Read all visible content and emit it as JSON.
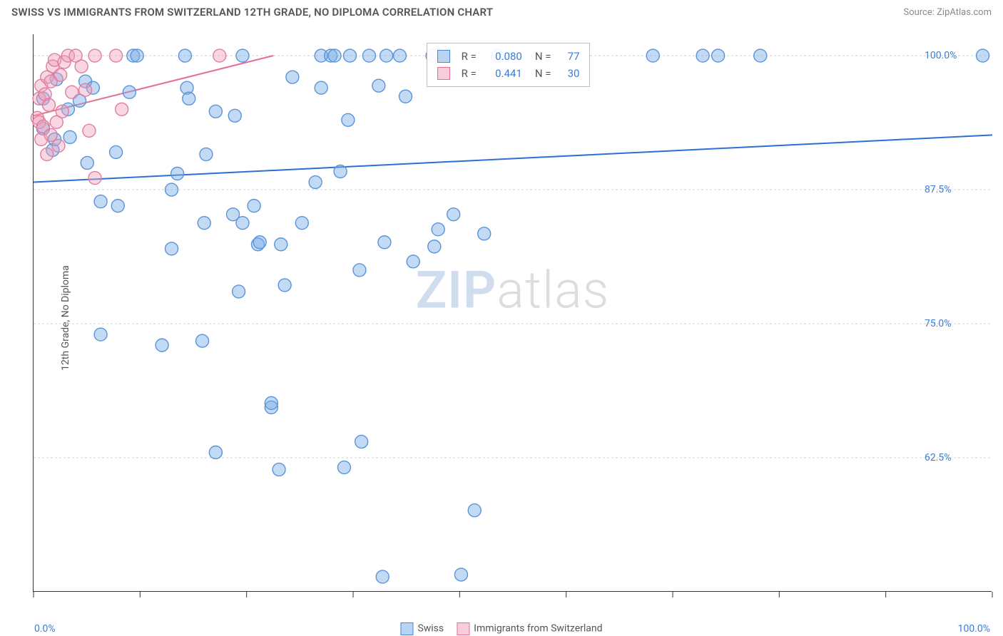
{
  "title": "SWISS VS IMMIGRANTS FROM SWITZERLAND 12TH GRADE, NO DIPLOMA CORRELATION CHART",
  "source_label": "Source: ZipAtlas.com",
  "y_axis_label": "12th Grade, No Diploma",
  "x_min_label": "0.0%",
  "x_max_label": "100.0%",
  "watermark_a": "ZIP",
  "watermark_b": "atlas",
  "chart": {
    "type": "scatter",
    "xlim": [
      0,
      100
    ],
    "ylim": [
      50,
      102
    ],
    "y_ticks": [
      62.5,
      75.0,
      87.5,
      100.0
    ],
    "y_tick_labels": [
      "62.5%",
      "75.0%",
      "87.5%",
      "100.0%"
    ],
    "x_tick_count": 9,
    "background_color": "#ffffff",
    "grid_color": "#d0d0d0",
    "axis_color": "#333333",
    "marker_radius": 9,
    "marker_stroke_width": 1.4,
    "line_width": 2,
    "y_tick_label_x_pct": 93,
    "stats_panel": {
      "left_pct": 41,
      "top_pct": 1.5,
      "rows": [
        {
          "swatch_fill": "#b9d4f3",
          "swatch_stroke": "#4b86d6",
          "r_label": "R =",
          "r_value": "0.080",
          "n_label": "N =",
          "n_value": "77"
        },
        {
          "swatch_fill": "#f6cdd8",
          "swatch_stroke": "#e36f94",
          "r_label": "R =",
          "r_value": "0.441",
          "n_label": "N =",
          "n_value": "30"
        }
      ]
    },
    "series": [
      {
        "name": "Swiss",
        "marker_fill": "rgba(122,172,230,0.45)",
        "marker_stroke": "#5a94d8",
        "line_color": "#2d6fd6",
        "legend_swatch_fill": "#b9d4f3",
        "legend_swatch_stroke": "#4b86d6",
        "regression": {
          "x1": 0,
          "y1": 88.2,
          "x2": 100,
          "y2": 92.6
        },
        "points": [
          [
            1,
            93.2
          ],
          [
            1,
            96
          ],
          [
            2,
            91.2
          ],
          [
            2.4,
            97.8
          ],
          [
            2.2,
            92.2
          ],
          [
            3.6,
            95
          ],
          [
            3.8,
            92.4
          ],
          [
            4.8,
            95.8
          ],
          [
            5.4,
            97.6
          ],
          [
            5.6,
            90
          ],
          [
            6.2,
            97
          ],
          [
            7,
            86.4
          ],
          [
            7,
            74
          ],
          [
            8.6,
            91
          ],
          [
            8.8,
            86
          ],
          [
            10,
            96.6
          ],
          [
            10.4,
            100
          ],
          [
            10.8,
            100
          ],
          [
            13.4,
            73
          ],
          [
            14.4,
            82
          ],
          [
            14.4,
            87.5
          ],
          [
            15,
            89
          ],
          [
            15.8,
            100
          ],
          [
            16,
            97
          ],
          [
            16.2,
            96
          ],
          [
            17.6,
            73.4
          ],
          [
            17.8,
            84.4
          ],
          [
            18,
            90.8
          ],
          [
            19,
            63
          ],
          [
            19,
            94.8
          ],
          [
            20.8,
            85.2
          ],
          [
            21,
            94.4
          ],
          [
            21.4,
            78
          ],
          [
            21.8,
            84.4
          ],
          [
            21.8,
            100
          ],
          [
            23,
            86
          ],
          [
            23.4,
            82.4
          ],
          [
            23.6,
            82.6
          ],
          [
            24.8,
            67.2
          ],
          [
            24.8,
            67.6
          ],
          [
            25.6,
            61.4
          ],
          [
            25.8,
            82.4
          ],
          [
            26.2,
            78.6
          ],
          [
            27,
            98
          ],
          [
            28,
            84.4
          ],
          [
            29.4,
            88.2
          ],
          [
            30,
            100
          ],
          [
            30,
            97
          ],
          [
            31,
            100
          ],
          [
            31.4,
            100
          ],
          [
            32,
            89.2
          ],
          [
            32.4,
            61.6
          ],
          [
            32.8,
            94
          ],
          [
            33,
            100
          ],
          [
            34,
            80
          ],
          [
            34.2,
            64
          ],
          [
            35,
            100
          ],
          [
            36,
            97.2
          ],
          [
            36.4,
            51.4
          ],
          [
            36.6,
            82.6
          ],
          [
            36.8,
            100
          ],
          [
            38.2,
            100
          ],
          [
            38.8,
            96.2
          ],
          [
            39.6,
            80.8
          ],
          [
            41.6,
            100
          ],
          [
            41.8,
            82.2
          ],
          [
            42.2,
            83.8
          ],
          [
            43.8,
            85.2
          ],
          [
            44.6,
            51.6
          ],
          [
            46,
            57.6
          ],
          [
            47,
            83.4
          ],
          [
            48.4,
            100
          ],
          [
            64.6,
            100
          ],
          [
            69.8,
            100
          ],
          [
            71.4,
            100
          ],
          [
            75.8,
            100
          ],
          [
            99,
            100
          ]
        ]
      },
      {
        "name": "Immigrants from Switzerland",
        "marker_fill": "rgba(238,160,185,0.42)",
        "marker_stroke": "#e07d9f",
        "line_color": "#e36f94",
        "legend_swatch_fill": "#f6cdd8",
        "legend_swatch_stroke": "#e36f94",
        "regression": {
          "x1": 0,
          "y1": 94.4,
          "x2": 25,
          "y2": 100
        },
        "points": [
          [
            0.4,
            94.2
          ],
          [
            0.6,
            93.8
          ],
          [
            0.6,
            96
          ],
          [
            0.8,
            92.2
          ],
          [
            0.8,
            97.2
          ],
          [
            1,
            93.4
          ],
          [
            1.2,
            96.4
          ],
          [
            1.4,
            90.8
          ],
          [
            1.4,
            98
          ],
          [
            1.6,
            95.4
          ],
          [
            1.8,
            92.6
          ],
          [
            1.8,
            97.6
          ],
          [
            2,
            99
          ],
          [
            2.2,
            99.6
          ],
          [
            2.4,
            93.8
          ],
          [
            2.6,
            91.6
          ],
          [
            2.8,
            98.2
          ],
          [
            3,
            94.8
          ],
          [
            3.2,
            99.4
          ],
          [
            3.6,
            100
          ],
          [
            4,
            96.6
          ],
          [
            4.4,
            100
          ],
          [
            5,
            99
          ],
          [
            5.4,
            96.8
          ],
          [
            5.8,
            93
          ],
          [
            6.4,
            100
          ],
          [
            6.4,
            88.6
          ],
          [
            8.6,
            100
          ],
          [
            9.2,
            95
          ],
          [
            19.4,
            100
          ]
        ]
      }
    ]
  },
  "bottom_legend": {
    "items": [
      {
        "swatch_fill": "#b9d4f3",
        "swatch_stroke": "#4b86d6",
        "label": "Swiss"
      },
      {
        "swatch_fill": "#f6cdd8",
        "swatch_stroke": "#e36f94",
        "label": "Immigrants from Switzerland"
      }
    ]
  }
}
